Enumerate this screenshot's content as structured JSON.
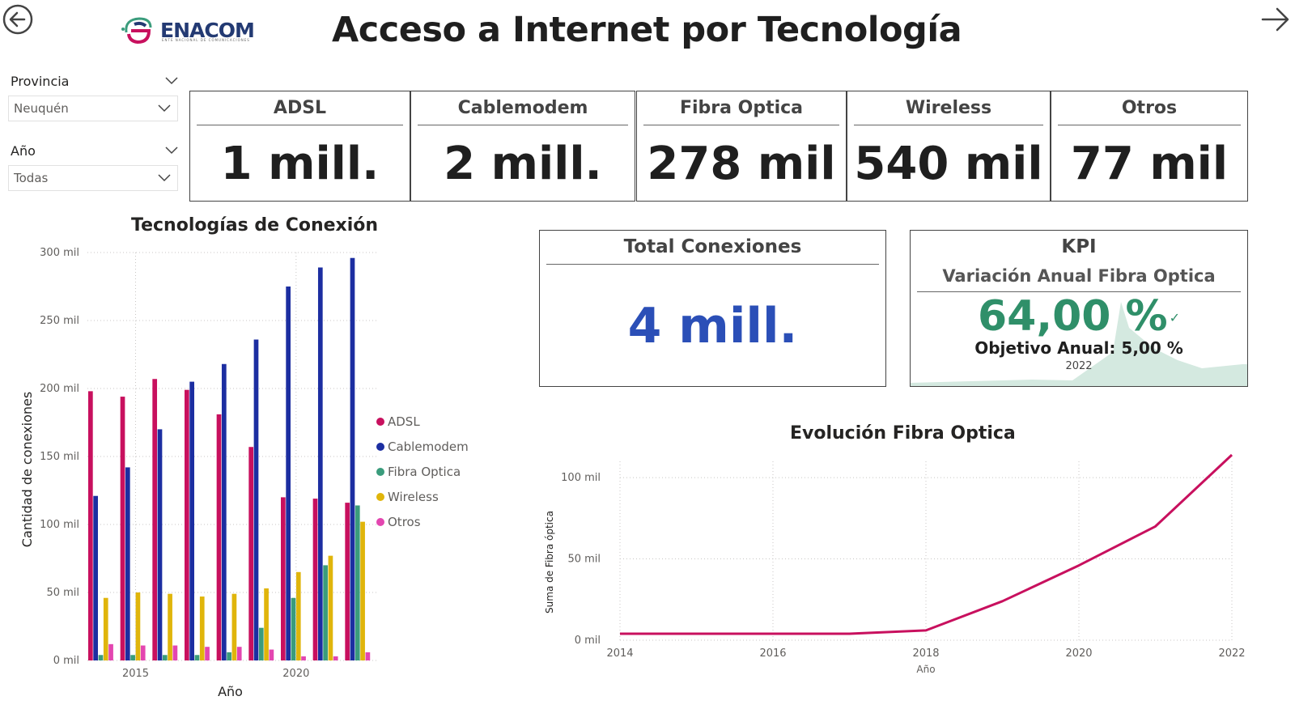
{
  "header": {
    "title": "Acceso a Internet por Tecnología",
    "logo_text": "ENACOM",
    "logo_subtitle": "ENTE NACIONAL DE COMUNICACIONES"
  },
  "navigation": {
    "back_icon": "arrow-left-circle-icon",
    "next_icon": "arrow-right-icon"
  },
  "filters": {
    "provincia": {
      "label": "Provincia",
      "value": "Neuquén"
    },
    "anio": {
      "label": "Año",
      "value": "Todas"
    }
  },
  "cards": [
    {
      "title": "ADSL",
      "value": "1 mill."
    },
    {
      "title": "Cablemodem",
      "value": "2 mill."
    },
    {
      "title": "Fibra Optica",
      "value": "278 mil"
    },
    {
      "title": "Wireless",
      "value": "540 mil"
    },
    {
      "title": "Otros",
      "value": "77 mil"
    }
  ],
  "total": {
    "title": "Total Conexiones",
    "value": "4 mill."
  },
  "kpi": {
    "title": "KPI",
    "subtitle": "Variación Anual Fibra Optica",
    "value": "64,00 %",
    "goal": "Objetivo Anual: 5,00 %",
    "year": "2022",
    "color_good": "#2f8f69"
  },
  "chart_data": [
    {
      "type": "bar",
      "title": "Tecnologías de Conexión",
      "xlabel": "Año",
      "ylabel": "Cantidad de conexiones",
      "x_tick_labels": [
        "2015",
        "2020"
      ],
      "y_tick_labels": [
        "0 mil",
        "50 mil",
        "100 mil",
        "150 mil",
        "200 mil",
        "250 mil",
        "300 mil"
      ],
      "categories": [
        "2014",
        "2015",
        "2016",
        "2017",
        "2018",
        "2019",
        "2020",
        "2021",
        "2022"
      ],
      "ylim": [
        0,
        300000
      ],
      "legend_position": "right",
      "grid": true,
      "series": [
        {
          "name": "ADSL",
          "color": "#c8105e",
          "values": [
            198000,
            194000,
            207000,
            199000,
            181000,
            157000,
            120000,
            119000,
            116000
          ]
        },
        {
          "name": "Cablemodem",
          "color": "#1c2ea1",
          "values": [
            121000,
            142000,
            170000,
            205000,
            218000,
            236000,
            275000,
            289000,
            296000
          ]
        },
        {
          "name": "Fibra Optica",
          "color": "#3a9c7c",
          "values": [
            4000,
            4000,
            4000,
            4000,
            6000,
            24000,
            46000,
            70000,
            114000
          ]
        },
        {
          "name": "Wireless",
          "color": "#e0b50b",
          "values": [
            46000,
            50000,
            49000,
            47000,
            49000,
            53000,
            65000,
            77000,
            102000
          ]
        },
        {
          "name": "Otros",
          "color": "#e346b0",
          "values": [
            12000,
            11000,
            11000,
            10000,
            10000,
            8000,
            3000,
            3000,
            6000
          ]
        }
      ]
    },
    {
      "type": "line",
      "title": "Evolución Fibra Optica",
      "xlabel": "Año",
      "ylabel": "Suma de Fibra óptica",
      "x": [
        2014,
        2015,
        2016,
        2017,
        2018,
        2019,
        2020,
        2021,
        2022
      ],
      "x_tick_labels": [
        "2014",
        "2016",
        "2018",
        "2020",
        "2022"
      ],
      "y_tick_labels": [
        "0 mil",
        "50 mil",
        "100 mil"
      ],
      "xlim": [
        2014,
        2022
      ],
      "ylim": [
        0,
        110000
      ],
      "grid": true,
      "series": [
        {
          "name": "Fibra Optica",
          "color": "#c8105e",
          "values": [
            4000,
            4000,
            4000,
            4000,
            6000,
            24000,
            46000,
            70000,
            114000
          ]
        }
      ]
    }
  ]
}
